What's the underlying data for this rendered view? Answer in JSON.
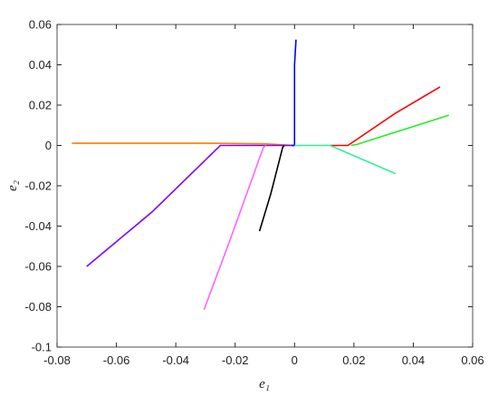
{
  "chart_data": {
    "type": "line",
    "xlabel": "e₁",
    "ylabel": "e₂",
    "xlim": [
      -0.08,
      0.06
    ],
    "xticks": [
      -0.08,
      -0.06,
      -0.04,
      -0.02,
      0,
      0.02,
      0.04,
      0.06
    ],
    "ylim": [
      -0.1,
      0.06
    ],
    "yticks": [
      -0.1,
      -0.08,
      -0.06,
      -0.04,
      -0.02,
      0,
      0.02,
      0.04,
      0.06
    ],
    "grid": false,
    "series": [
      {
        "color": "#ff7f00",
        "x": [
          -0.075,
          -0.03,
          -0.01,
          0
        ],
        "values": [
          0.0011,
          0.0011,
          0.0008,
          0
        ]
      },
      {
        "color": "#7f00ff",
        "x": [
          -0.07,
          -0.048,
          -0.025,
          0
        ],
        "values": [
          -0.06,
          -0.033,
          0,
          0
        ]
      },
      {
        "color": "#ff66ff",
        "x": [
          -0.0305,
          -0.022,
          -0.0105,
          -0.0095
        ],
        "values": [
          -0.0815,
          -0.048,
          -0.001,
          0
        ]
      },
      {
        "color": "#000000",
        "x": [
          -0.0118,
          -0.008,
          -0.004,
          -0.0035
        ],
        "values": [
          -0.0425,
          -0.024,
          -0.001,
          0
        ]
      },
      {
        "color": "#0000ff",
        "x": [
          -0.001,
          0,
          0,
          0.0005
        ],
        "values": [
          0,
          0,
          0.04,
          0.0525
        ]
      },
      {
        "color": "#ff0000",
        "x": [
          0.012,
          0.018,
          0.034,
          0.049
        ],
        "values": [
          0,
          0,
          0.016,
          0.029
        ]
      },
      {
        "color": "#22ee22",
        "x": [
          0.019,
          0.021,
          0.052
        ],
        "values": [
          0,
          0.0005,
          0.015
        ]
      },
      {
        "color": "#33ee99",
        "x": [
          0,
          0.012,
          0.034
        ],
        "values": [
          0,
          0,
          -0.014
        ]
      }
    ]
  }
}
